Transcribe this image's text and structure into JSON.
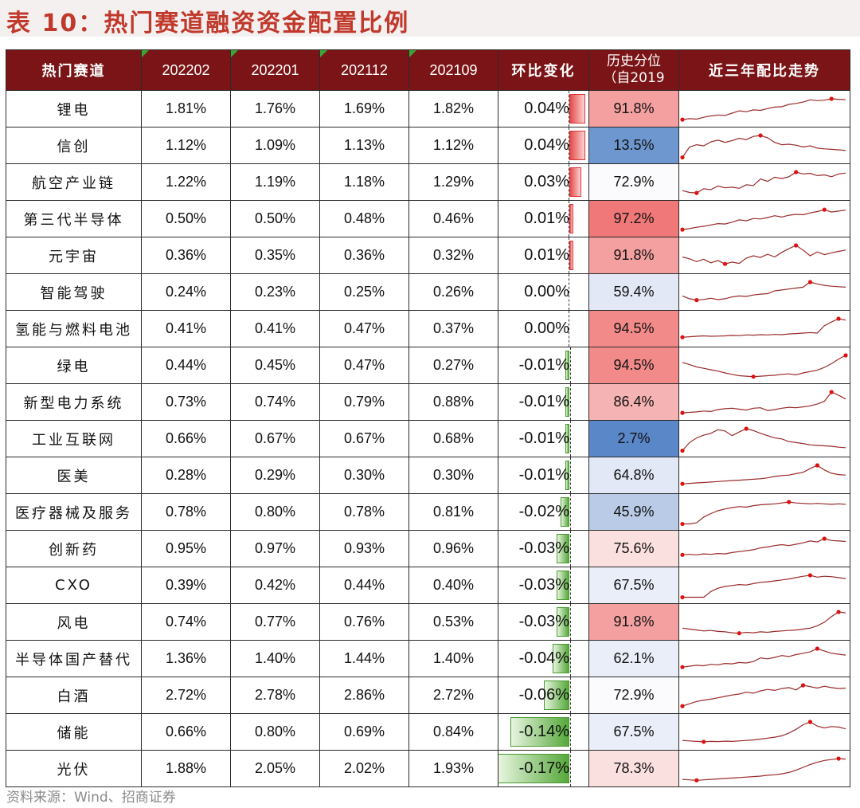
{
  "title": "表 10：热门赛道融资资金配置比例",
  "source": "资料来源：Wind、招商证券",
  "headers": {
    "name": "热门赛道",
    "c1": "202202",
    "c2": "202201",
    "c3": "202112",
    "c4": "202109",
    "change": "环比变化",
    "hist_line1": "历史分位",
    "hist_line2": "（自2019",
    "trend": "近三年配比走势"
  },
  "rows": [
    {
      "name": "锂电",
      "v1": "1.81%",
      "v2": "1.76%",
      "v3": "1.69%",
      "v4": "1.82%",
      "chg": "0.04%",
      "chg_num": 0.04,
      "pct": "91.8%",
      "pct_color": "#f4a0a0",
      "spark": [
        0.1,
        0.14,
        0.12,
        0.2,
        0.26,
        0.3,
        0.28,
        0.38,
        0.48,
        0.44,
        0.52,
        0.5,
        0.58,
        0.64,
        0.66,
        0.76,
        0.8,
        0.86,
        0.96,
        0.92,
        0.94,
        1.0,
        0.98,
        0.96
      ]
    },
    {
      "name": "信创",
      "v1": "1.12%",
      "v2": "1.09%",
      "v3": "1.13%",
      "v4": "1.12%",
      "chg": "0.04%",
      "chg_num": 0.04,
      "pct": "13.5%",
      "pct_color": "#6f97cf",
      "spark": [
        0.05,
        0.5,
        0.6,
        0.55,
        0.72,
        0.8,
        0.7,
        0.78,
        0.88,
        0.82,
        0.96,
        1.0,
        0.9,
        0.7,
        0.6,
        0.62,
        0.58,
        0.5,
        0.55,
        0.45,
        0.42,
        0.4,
        0.38,
        0.35
      ]
    },
    {
      "name": "航空产业链",
      "v1": "1.22%",
      "v2": "1.19%",
      "v3": "1.18%",
      "v4": "1.29%",
      "chg": "0.03%",
      "chg_num": 0.03,
      "pct": "72.9%",
      "pct_color": "#fbfbfd",
      "spark": [
        0.2,
        0.12,
        0.1,
        0.28,
        0.24,
        0.4,
        0.32,
        0.35,
        0.3,
        0.45,
        0.42,
        0.7,
        0.6,
        0.78,
        0.72,
        0.8,
        1.0,
        0.92,
        0.95,
        0.85,
        0.88,
        0.8,
        0.92,
        0.96
      ]
    },
    {
      "name": "第三代半导体",
      "v1": "0.50%",
      "v2": "0.50%",
      "v3": "0.48%",
      "v4": "0.46%",
      "chg": "0.01%",
      "chg_num": 0.01,
      "pct": "97.2%",
      "pct_color": "#f07878",
      "spark": [
        0.1,
        0.14,
        0.2,
        0.24,
        0.3,
        0.36,
        0.34,
        0.42,
        0.52,
        0.48,
        0.58,
        0.56,
        0.62,
        0.7,
        0.64,
        0.72,
        0.76,
        0.74,
        0.82,
        0.88,
        0.96,
        0.86,
        0.9,
        0.94
      ]
    },
    {
      "name": "元宇宙",
      "v1": "0.36%",
      "v2": "0.35%",
      "v3": "0.36%",
      "v4": "0.32%",
      "chg": "0.01%",
      "chg_num": 0.01,
      "pct": "91.8%",
      "pct_color": "#f4a0a0",
      "spark": [
        0.5,
        0.42,
        0.3,
        0.4,
        0.25,
        0.35,
        0.2,
        0.28,
        0.22,
        0.45,
        0.55,
        0.48,
        0.62,
        0.5,
        0.7,
        0.86,
        1.0,
        0.8,
        0.55,
        0.72,
        0.6,
        0.68,
        0.74,
        0.8
      ]
    },
    {
      "name": "智能驾驶",
      "v1": "0.24%",
      "v2": "0.23%",
      "v3": "0.25%",
      "v4": "0.26%",
      "chg": "0.00%",
      "chg_num": 0.0,
      "pct": "59.4%",
      "pct_color": "#e2e8f5",
      "spark": [
        0.4,
        0.28,
        0.22,
        0.25,
        0.3,
        0.24,
        0.28,
        0.36,
        0.4,
        0.38,
        0.44,
        0.48,
        0.5,
        0.62,
        0.66,
        0.7,
        0.74,
        0.78,
        1.0,
        0.92,
        0.86,
        0.82,
        0.8,
        0.78
      ]
    },
    {
      "name": "氢能与燃料电池",
      "v1": "0.41%",
      "v2": "0.41%",
      "v3": "0.47%",
      "v4": "0.37%",
      "chg": "0.00%",
      "chg_num": 0.0,
      "pct": "94.5%",
      "pct_color": "#f38a8a",
      "spark": [
        0.2,
        0.22,
        0.24,
        0.26,
        0.24,
        0.25,
        0.26,
        0.28,
        0.27,
        0.3,
        0.29,
        0.31,
        0.3,
        0.32,
        0.31,
        0.34,
        0.36,
        0.38,
        0.4,
        0.38,
        0.7,
        0.86,
        1.0,
        0.94
      ]
    },
    {
      "name": "绿电",
      "v1": "0.44%",
      "v2": "0.45%",
      "v3": "0.47%",
      "v4": "0.27%",
      "chg": "-0.01%",
      "chg_num": -0.01,
      "pct": "94.5%",
      "pct_color": "#f38a8a",
      "spark": [
        0.7,
        0.6,
        0.5,
        0.44,
        0.38,
        0.32,
        0.24,
        0.18,
        0.12,
        0.1,
        0.08,
        0.1,
        0.12,
        0.14,
        0.18,
        0.2,
        0.16,
        0.24,
        0.3,
        0.36,
        0.48,
        0.64,
        0.84,
        1.0
      ]
    },
    {
      "name": "新型电力系统",
      "v1": "0.73%",
      "v2": "0.74%",
      "v3": "0.79%",
      "v4": "0.88%",
      "chg": "-0.01%",
      "chg_num": -0.01,
      "pct": "86.4%",
      "pct_color": "#f6b3b3",
      "spark": [
        0.1,
        0.12,
        0.14,
        0.18,
        0.16,
        0.24,
        0.28,
        0.3,
        0.26,
        0.22,
        0.3,
        0.32,
        0.2,
        0.24,
        0.3,
        0.34,
        0.32,
        0.36,
        0.4,
        0.48,
        0.6,
        1.0,
        0.86,
        0.7
      ]
    },
    {
      "name": "工业互联网",
      "v1": "0.66%",
      "v2": "0.67%",
      "v3": "0.67%",
      "v4": "0.68%",
      "chg": "-0.01%",
      "chg_num": -0.01,
      "pct": "2.7%",
      "pct_color": "#5a87c8",
      "spark": [
        0.05,
        0.4,
        0.6,
        0.72,
        0.8,
        0.96,
        0.9,
        0.7,
        0.86,
        1.0,
        0.92,
        0.8,
        0.7,
        0.6,
        0.56,
        0.44,
        0.4,
        0.36,
        0.3,
        0.28,
        0.26,
        0.24,
        0.2,
        0.18
      ]
    },
    {
      "name": "医美",
      "v1": "0.28%",
      "v2": "0.29%",
      "v3": "0.30%",
      "v4": "0.30%",
      "chg": "-0.01%",
      "chg_num": -0.01,
      "pct": "64.8%",
      "pct_color": "#e2e8f5",
      "spark": [
        0.2,
        0.22,
        0.24,
        0.26,
        0.28,
        0.3,
        0.32,
        0.34,
        0.36,
        0.38,
        0.4,
        0.42,
        0.46,
        0.52,
        0.56,
        0.58,
        0.64,
        0.7,
        0.86,
        1.0,
        0.8,
        0.66,
        0.6,
        0.58
      ]
    },
    {
      "name": "医疗器械及服务",
      "v1": "0.78%",
      "v2": "0.80%",
      "v3": "0.78%",
      "v4": "0.81%",
      "chg": "-0.02%",
      "chg_num": -0.02,
      "pct": "45.9%",
      "pct_color": "#b9cbe7",
      "spark": [
        0.05,
        0.05,
        0.1,
        0.35,
        0.5,
        0.62,
        0.7,
        0.76,
        0.8,
        0.78,
        0.84,
        0.88,
        0.9,
        0.92,
        0.96,
        1.0,
        0.96,
        0.94,
        0.92,
        0.94,
        0.92,
        0.9,
        0.92,
        0.9
      ]
    },
    {
      "name": "创新药",
      "v1": "0.95%",
      "v2": "0.97%",
      "v3": "0.93%",
      "v4": "0.96%",
      "chg": "-0.03%",
      "chg_num": -0.03,
      "pct": "75.6%",
      "pct_color": "#fbe0e0",
      "spark": [
        0.3,
        0.32,
        0.3,
        0.34,
        0.32,
        0.36,
        0.34,
        0.4,
        0.44,
        0.48,
        0.52,
        0.6,
        0.64,
        0.7,
        0.74,
        0.7,
        0.76,
        0.82,
        0.9,
        0.86,
        1.0,
        0.92,
        0.9,
        0.88
      ]
    },
    {
      "name": "CXO",
      "v1": "0.39%",
      "v2": "0.42%",
      "v3": "0.44%",
      "v4": "0.40%",
      "chg": "-0.03%",
      "chg_num": -0.03,
      "pct": "67.5%",
      "pct_color": "#e9eef8",
      "spark": [
        0.05,
        0.05,
        0.05,
        0.05,
        0.3,
        0.44,
        0.52,
        0.56,
        0.6,
        0.58,
        0.64,
        0.7,
        0.72,
        0.76,
        0.8,
        0.84,
        0.9,
        0.96,
        1.0,
        0.92,
        0.96,
        0.94,
        0.9,
        0.86
      ]
    },
    {
      "name": "风电",
      "v1": "0.74%",
      "v2": "0.77%",
      "v3": "0.76%",
      "v4": "0.53%",
      "chg": "-0.03%",
      "chg_num": -0.03,
      "pct": "91.8%",
      "pct_color": "#f4a0a0",
      "spark": [
        0.3,
        0.26,
        0.22,
        0.18,
        0.2,
        0.16,
        0.14,
        0.1,
        0.08,
        0.12,
        0.1,
        0.14,
        0.12,
        0.16,
        0.18,
        0.2,
        0.22,
        0.26,
        0.3,
        0.4,
        0.56,
        0.8,
        1.0,
        0.96
      ]
    },
    {
      "name": "半导体国产替代",
      "v1": "1.36%",
      "v2": "1.40%",
      "v3": "1.44%",
      "v4": "1.40%",
      "chg": "-0.04%",
      "chg_num": -0.04,
      "pct": "62.1%",
      "pct_color": "#e9eef8",
      "spark": [
        0.2,
        0.24,
        0.28,
        0.26,
        0.32,
        0.3,
        0.36,
        0.34,
        0.4,
        0.38,
        0.44,
        0.6,
        0.56,
        0.62,
        0.7,
        0.66,
        0.74,
        0.8,
        0.86,
        1.0,
        0.9,
        0.8,
        0.76,
        0.72
      ]
    },
    {
      "name": "白酒",
      "v1": "2.72%",
      "v2": "2.78%",
      "v3": "2.86%",
      "v4": "2.72%",
      "chg": "-0.06%",
      "chg_num": -0.06,
      "pct": "72.9%",
      "pct_color": "#fbfbfd",
      "spark": [
        0.1,
        0.2,
        0.3,
        0.36,
        0.4,
        0.46,
        0.52,
        0.58,
        0.62,
        0.7,
        0.66,
        0.76,
        0.82,
        0.78,
        0.86,
        0.9,
        0.8,
        1.0,
        0.94,
        0.88,
        0.96,
        0.9,
        0.86,
        0.88
      ]
    },
    {
      "name": "储能",
      "v1": "0.66%",
      "v2": "0.80%",
      "v3": "0.69%",
      "v4": "0.84%",
      "chg": "-0.14%",
      "chg_num": -0.14,
      "pct": "67.5%",
      "pct_color": "#e9eef8",
      "spark": [
        0.2,
        0.18,
        0.16,
        0.14,
        0.16,
        0.15,
        0.17,
        0.16,
        0.18,
        0.2,
        0.22,
        0.26,
        0.3,
        0.34,
        0.4,
        0.52,
        0.68,
        0.88,
        1.0,
        0.82,
        0.74,
        0.8,
        0.78,
        0.7
      ]
    },
    {
      "name": "光伏",
      "v1": "1.88%",
      "v2": "2.05%",
      "v3": "2.02%",
      "v4": "1.93%",
      "chg": "-0.17%",
      "chg_num": -0.17,
      "pct": "78.3%",
      "pct_color": "#fbe0e0",
      "spark": [
        0.1,
        0.08,
        0.06,
        0.08,
        0.1,
        0.12,
        0.14,
        0.16,
        0.18,
        0.2,
        0.22,
        0.24,
        0.28,
        0.3,
        0.34,
        0.4,
        0.5,
        0.62,
        0.74,
        0.84,
        0.92,
        0.96,
        1.0,
        0.98
      ]
    }
  ]
}
